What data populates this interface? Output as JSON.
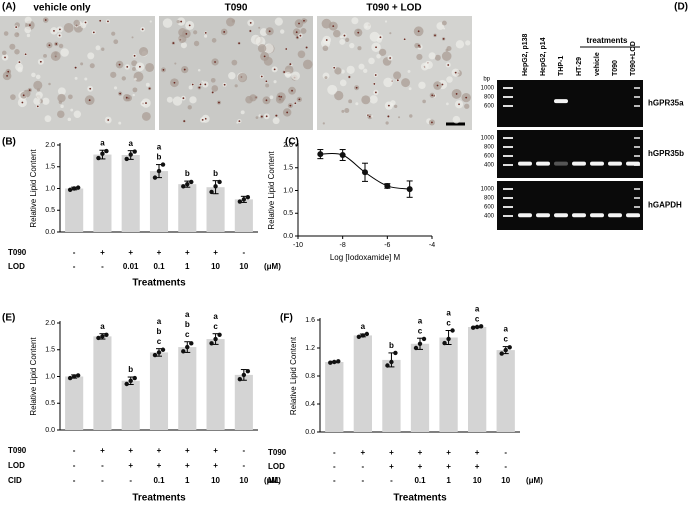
{
  "panel_a": {
    "label": "(A)",
    "images": [
      {
        "caption": "vehicle only"
      },
      {
        "caption": "T090"
      },
      {
        "caption": "T090 + LOD"
      }
    ]
  },
  "panel_d": {
    "label": "(D)",
    "bp": "bp",
    "treatments": "treatments",
    "lanes": [
      "HepG2, p138",
      "HepG2, p14",
      "THP-1",
      "HT-29",
      "vehicle",
      "T090",
      "T090+LOD"
    ],
    "gels": [
      {
        "name": "hGPR35a",
        "ladder": [
          "1000",
          "800",
          "600"
        ]
      },
      {
        "name": "hGPR35b",
        "ladder": [
          "1000",
          "800",
          "600",
          "400"
        ]
      },
      {
        "name": "hGAPDH",
        "ladder": [
          "1000",
          "800",
          "600",
          "400"
        ]
      }
    ]
  },
  "chart_data": [
    {
      "type": "bar",
      "panel": "(B)",
      "y_label": "Relative Lipid Content",
      "x_label": "Treatments",
      "unit": "(μM)",
      "color": "#d4d4d4",
      "values": [
        1.0,
        1.78,
        1.77,
        1.4,
        1.1,
        1.03,
        0.75
      ],
      "errors": [
        0.03,
        0.1,
        0.1,
        0.15,
        0.07,
        0.15,
        0.07
      ],
      "points": [
        [
          0.97,
          1.0,
          1.02
        ],
        [
          1.7,
          1.8,
          1.86
        ],
        [
          1.68,
          1.78,
          1.85
        ],
        [
          1.25,
          1.4,
          1.55
        ],
        [
          1.05,
          1.1,
          1.15
        ],
        [
          0.92,
          1.05,
          1.15
        ],
        [
          0.7,
          0.75,
          0.8
        ]
      ],
      "letters": [
        null,
        [
          "a"
        ],
        [
          "a"
        ],
        [
          "a",
          "b"
        ],
        [
          "b"
        ],
        [
          "b"
        ],
        null
      ],
      "treatment_rows": [
        {
          "name": "T090",
          "values": [
            "-",
            "+",
            "+",
            "+",
            "+",
            "+",
            "-"
          ]
        },
        {
          "name": "LOD",
          "values": [
            "-",
            "-",
            "0.01",
            "0.1",
            "1",
            "10",
            "10"
          ]
        }
      ],
      "ylim": [
        0,
        2
      ],
      "yticks": [
        {
          "value": 0,
          "label": "0.0"
        },
        0.5,
        {
          "value": 1,
          "label": "1.0"
        },
        1.5,
        {
          "value": 2,
          "label": "2.0"
        }
      ]
    },
    {
      "type": "line",
      "panel": "(C)",
      "y_label": "Relative Lipid Content",
      "x_label": "Log [Iodoxamide] M",
      "x": [
        -9,
        -8,
        -7,
        -6,
        -5
      ],
      "values": [
        1.8,
        1.78,
        1.4,
        1.1,
        1.03
      ],
      "errors": [
        0.1,
        0.12,
        0.2,
        0.05,
        0.18
      ],
      "xlim": [
        -10,
        -4
      ],
      "xticks": [
        -10,
        -8,
        -6,
        -4
      ],
      "ylim": [
        0,
        2
      ],
      "yticks": [
        {
          "value": 0,
          "label": "0.0"
        },
        0.5,
        {
          "value": 1,
          "label": "1.0"
        },
        1.5,
        {
          "value": 2,
          "label": "2.0"
        }
      ]
    },
    {
      "type": "bar",
      "panel": "(E)",
      "y_label": "Relative Lipid Content",
      "x_label": "Treatments",
      "unit": "(μM)",
      "color": "#d4d4d4",
      "values": [
        1.0,
        1.75,
        0.92,
        1.45,
        1.55,
        1.7,
        1.03
      ],
      "errors": [
        0.03,
        0.05,
        0.07,
        0.07,
        0.1,
        0.1,
        0.1
      ],
      "points": [
        [
          0.97,
          1.0,
          1.02
        ],
        [
          1.72,
          1.75,
          1.78
        ],
        [
          0.86,
          0.92,
          0.97
        ],
        [
          1.4,
          1.45,
          1.5
        ],
        [
          1.47,
          1.55,
          1.62
        ],
        [
          1.62,
          1.7,
          1.78
        ],
        [
          0.95,
          1.03,
          1.1
        ]
      ],
      "letters": [
        null,
        [
          "a"
        ],
        [
          "b"
        ],
        [
          "a",
          "b",
          "c"
        ],
        [
          "a",
          "b",
          "c"
        ],
        [
          "a",
          "c"
        ],
        null
      ],
      "treatment_rows": [
        {
          "name": "T090",
          "values": [
            "-",
            "+",
            "+",
            "+",
            "+",
            "+",
            "-"
          ]
        },
        {
          "name": "LOD",
          "values": [
            "-",
            "-",
            "+",
            "+",
            "+",
            "+",
            "-"
          ]
        },
        {
          "name": "CID",
          "values": [
            "-",
            "-",
            "-",
            "0.1",
            "1",
            "10",
            "10"
          ]
        }
      ],
      "ylim": [
        0,
        2
      ],
      "yticks": [
        {
          "value": 0,
          "label": "0.0"
        },
        0.5,
        {
          "value": 1,
          "label": "1.0"
        },
        1.5,
        {
          "value": 2,
          "label": "2.0"
        }
      ]
    },
    {
      "type": "bar",
      "panel": "(F)",
      "y_label": "Relative Lipid Content",
      "x_label": "Treatments",
      "unit": "(μM)",
      "color": "#d4d4d4",
      "values": [
        1.0,
        1.38,
        1.03,
        1.26,
        1.35,
        1.5,
        1.17
      ],
      "errors": [
        0.01,
        0.02,
        0.1,
        0.08,
        0.1,
        0.01,
        0.05
      ],
      "points": [
        [
          0.99,
          1.0,
          1.01
        ],
        [
          1.36,
          1.38,
          1.4
        ],
        [
          0.95,
          1.0,
          1.13
        ],
        [
          1.2,
          1.26,
          1.33
        ],
        [
          1.27,
          1.33,
          1.45
        ],
        [
          1.49,
          1.5,
          1.51
        ],
        [
          1.12,
          1.17,
          1.21
        ]
      ],
      "letters": [
        null,
        [
          "a"
        ],
        [
          "b"
        ],
        [
          "a",
          "c"
        ],
        [
          "a",
          "c"
        ],
        [
          "a",
          "c"
        ],
        [
          "a",
          "c"
        ]
      ],
      "treatment_rows": [
        {
          "name": "T090",
          "values": [
            "-",
            "+",
            "+",
            "+",
            "+",
            "+",
            "-"
          ]
        },
        {
          "name": "LOD",
          "values": [
            "-",
            "-",
            "+",
            "+",
            "+",
            "+",
            "-"
          ]
        },
        {
          "name": "ML",
          "values": [
            "-",
            "-",
            "-",
            "0.1",
            "1",
            "10",
            "10"
          ]
        }
      ],
      "ylim": [
        0,
        1.6
      ],
      "yticks": [
        {
          "value": 0,
          "label": "0.0"
        },
        0.4,
        0.8,
        1.2,
        1.6
      ]
    }
  ]
}
